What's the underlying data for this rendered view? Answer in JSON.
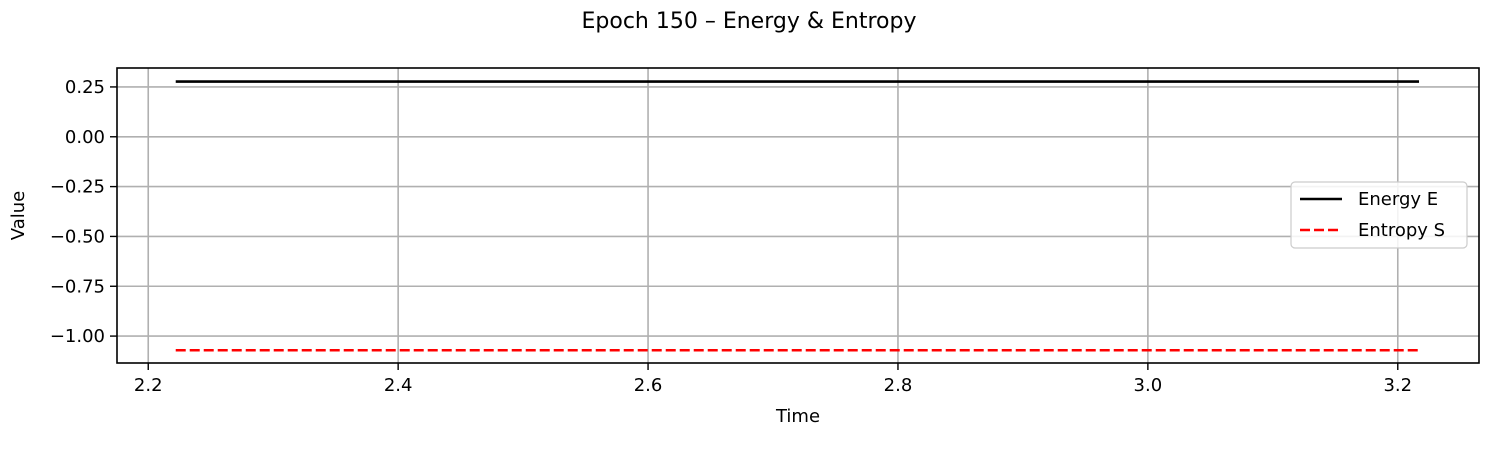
{
  "chart_data": {
    "type": "line",
    "title": "Epoch 150 – Energy & Entropy",
    "xlabel": "Time",
    "ylabel": "Value",
    "xlim": [
      2.175,
      3.265
    ],
    "ylim": [
      -1.135,
      0.345
    ],
    "xticks": [
      2.2,
      2.4,
      2.6,
      2.8,
      3.0,
      3.2
    ],
    "xtick_labels": [
      "2.2",
      "2.4",
      "2.6",
      "2.8",
      "3.0",
      "3.2"
    ],
    "yticks": [
      0.25,
      0.0,
      -0.25,
      -0.5,
      -0.75,
      -1.0
    ],
    "ytick_labels": [
      "0.25",
      "0.00",
      "−0.25",
      "−0.50",
      "−0.75",
      "−1.00"
    ],
    "grid": true,
    "legend_position": "center-right",
    "series": [
      {
        "name": "Energy E",
        "color": "#000000",
        "style": "solid",
        "x": [
          2.222,
          3.217
        ],
        "y": [
          0.277,
          0.277
        ]
      },
      {
        "name": "Entropy S",
        "color": "#ff0000",
        "style": "dashed",
        "x": [
          2.222,
          3.217
        ],
        "y": [
          -1.071,
          -1.071
        ]
      }
    ]
  }
}
